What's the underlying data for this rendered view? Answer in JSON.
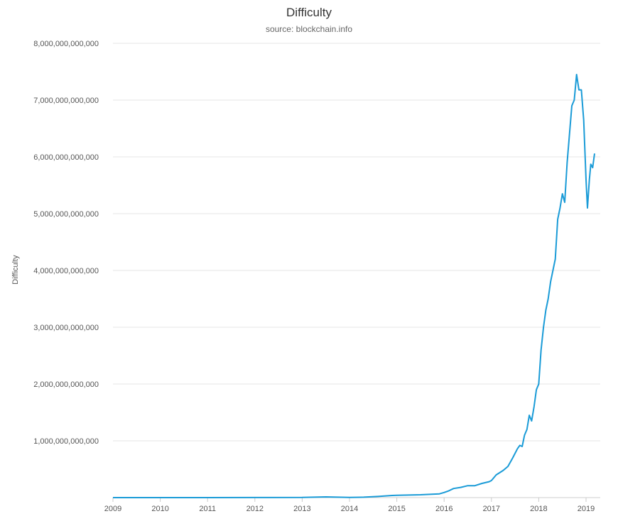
{
  "chart_data": {
    "type": "line",
    "title": "Difficulty",
    "subtitle": "source: blockchain.info",
    "ylabel": "Difficulty",
    "xlabel": "",
    "xlim": [
      2009.0,
      2019.3
    ],
    "ylim": [
      0,
      8000000000000
    ],
    "grid": true,
    "legend": "none",
    "line_color": "#1a9bd7",
    "y_ticks": [
      {
        "value": 0,
        "label": ""
      },
      {
        "value": 1000000000000,
        "label": "1,000,000,000,000"
      },
      {
        "value": 2000000000000,
        "label": "2,000,000,000,000"
      },
      {
        "value": 3000000000000,
        "label": "3,000,000,000,000"
      },
      {
        "value": 4000000000000,
        "label": "4,000,000,000,000"
      },
      {
        "value": 5000000000000,
        "label": "5,000,000,000,000"
      },
      {
        "value": 6000000000000,
        "label": "6,000,000,000,000"
      },
      {
        "value": 7000000000000,
        "label": "7,000,000,000,000"
      },
      {
        "value": 8000000000000,
        "label": "8,000,000,000,000"
      }
    ],
    "x_ticks": [
      {
        "value": 2009,
        "label": "2009"
      },
      {
        "value": 2010,
        "label": "2010"
      },
      {
        "value": 2011,
        "label": "2011"
      },
      {
        "value": 2012,
        "label": "2012"
      },
      {
        "value": 2013,
        "label": "2013"
      },
      {
        "value": 2014,
        "label": "2014"
      },
      {
        "value": 2015,
        "label": "2015"
      },
      {
        "value": 2016,
        "label": "2016"
      },
      {
        "value": 2017,
        "label": "2017"
      },
      {
        "value": 2018,
        "label": "2018"
      },
      {
        "value": 2019,
        "label": "2019"
      }
    ],
    "series": [
      {
        "points": [
          [
            2009.0,
            0
          ],
          [
            2010.0,
            0
          ],
          [
            2011.0,
            1000000
          ],
          [
            2012.0,
            1200000000
          ],
          [
            2013.0,
            3000000000
          ],
          [
            2013.5,
            12000000000
          ],
          [
            2014.0,
            2000000000
          ],
          [
            2014.3,
            7000000000
          ],
          [
            2014.6,
            20000000000
          ],
          [
            2014.9,
            37000000000
          ],
          [
            2015.0,
            41000000000
          ],
          [
            2015.5,
            50000000000
          ],
          [
            2015.9,
            66000000000
          ],
          [
            2016.0,
            90000000000
          ],
          [
            2016.1,
            120000000000
          ],
          [
            2016.2,
            160000000000
          ],
          [
            2016.35,
            180000000000
          ],
          [
            2016.5,
            210000000000
          ],
          [
            2016.65,
            210000000000
          ],
          [
            2016.8,
            250000000000
          ],
          [
            2016.95,
            280000000000
          ],
          [
            2017.0,
            300000000000
          ],
          [
            2017.1,
            400000000000
          ],
          [
            2017.25,
            480000000000
          ],
          [
            2017.35,
            550000000000
          ],
          [
            2017.45,
            700000000000
          ],
          [
            2017.55,
            860000000000
          ],
          [
            2017.6,
            920000000000
          ],
          [
            2017.65,
            900000000000
          ],
          [
            2017.7,
            1100000000000
          ],
          [
            2017.75,
            1200000000000
          ],
          [
            2017.8,
            1450000000000
          ],
          [
            2017.85,
            1350000000000
          ],
          [
            2017.9,
            1600000000000
          ],
          [
            2017.95,
            1900000000000
          ],
          [
            2018.0,
            2000000000000
          ],
          [
            2018.05,
            2600000000000
          ],
          [
            2018.1,
            3000000000000
          ],
          [
            2018.15,
            3300000000000
          ],
          [
            2018.2,
            3500000000000
          ],
          [
            2018.25,
            3800000000000
          ],
          [
            2018.3,
            4000000000000
          ],
          [
            2018.35,
            4200000000000
          ],
          [
            2018.4,
            4900000000000
          ],
          [
            2018.45,
            5100000000000
          ],
          [
            2018.5,
            5350000000000
          ],
          [
            2018.55,
            5200000000000
          ],
          [
            2018.6,
            5900000000000
          ],
          [
            2018.65,
            6400000000000
          ],
          [
            2018.7,
            6900000000000
          ],
          [
            2018.75,
            7000000000000
          ],
          [
            2018.8,
            7450000000000
          ],
          [
            2018.85,
            7180000000000
          ],
          [
            2018.9,
            7180000000000
          ],
          [
            2018.95,
            6650000000000
          ],
          [
            2019.0,
            5600000000000
          ],
          [
            2019.03,
            5100000000000
          ],
          [
            2019.07,
            5600000000000
          ],
          [
            2019.1,
            5870000000000
          ],
          [
            2019.14,
            5810000000000
          ],
          [
            2019.18,
            6060000000000
          ]
        ]
      }
    ]
  }
}
